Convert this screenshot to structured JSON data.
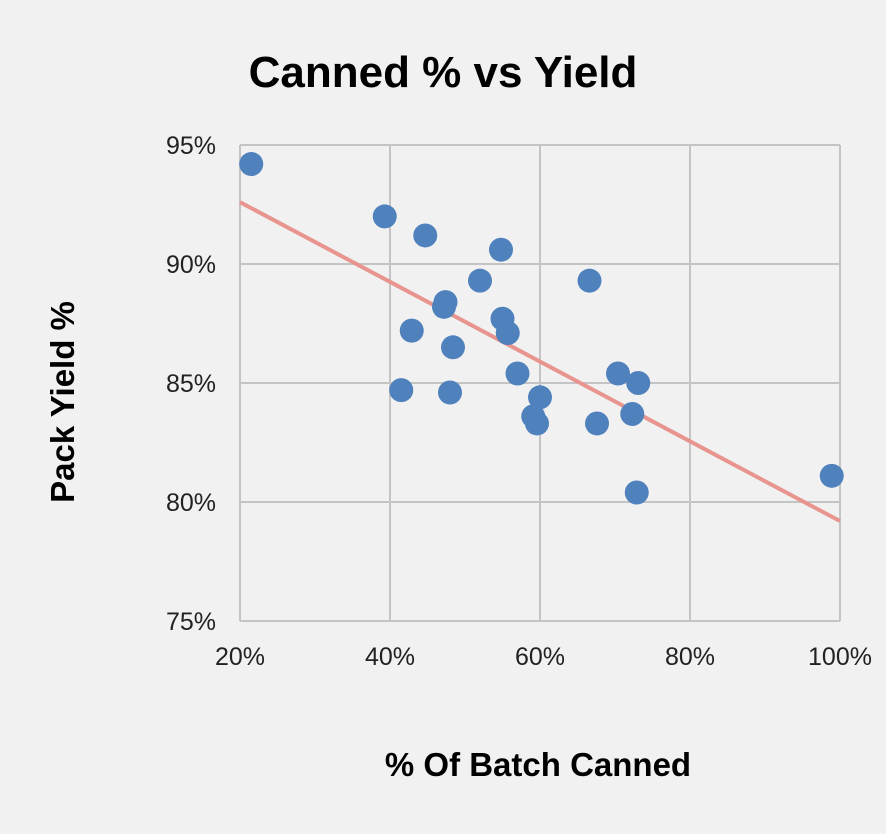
{
  "chart_data": {
    "type": "scatter",
    "title": "Canned % vs Yield",
    "xlabel": "% Of Batch Canned",
    "ylabel": "Pack Yield %",
    "xlim": [
      20,
      100
    ],
    "ylim": [
      75,
      95
    ],
    "xticks": [
      20,
      40,
      60,
      80,
      100
    ],
    "xtick_labels": [
      "20%",
      "40%",
      "60%",
      "80%",
      "100%"
    ],
    "yticks": [
      75,
      80,
      85,
      90,
      95
    ],
    "ytick_labels": [
      "75%",
      "80%",
      "85%",
      "90%",
      "95%"
    ],
    "grid": true,
    "legend": "none",
    "colors": {
      "points": "#4f81bd",
      "trendline": "#e8948f",
      "background": "#f1f1f1"
    },
    "series": [
      {
        "values": [
          {
            "x": 21.5,
            "y": 94.2
          },
          {
            "x": 39.3,
            "y": 92.0
          },
          {
            "x": 44.7,
            "y": 91.2
          },
          {
            "x": 54.8,
            "y": 90.6
          },
          {
            "x": 52.0,
            "y": 89.3
          },
          {
            "x": 66.6,
            "y": 89.3
          },
          {
            "x": 47.4,
            "y": 88.4
          },
          {
            "x": 47.2,
            "y": 88.2
          },
          {
            "x": 55.0,
            "y": 87.7
          },
          {
            "x": 55.7,
            "y": 87.1
          },
          {
            "x": 42.9,
            "y": 87.2
          },
          {
            "x": 48.4,
            "y": 86.5
          },
          {
            "x": 57.0,
            "y": 85.4
          },
          {
            "x": 70.4,
            "y": 85.4
          },
          {
            "x": 73.1,
            "y": 85.0
          },
          {
            "x": 41.5,
            "y": 84.7
          },
          {
            "x": 48.0,
            "y": 84.6
          },
          {
            "x": 60.0,
            "y": 84.4
          },
          {
            "x": 59.1,
            "y": 83.6
          },
          {
            "x": 59.6,
            "y": 83.3
          },
          {
            "x": 67.6,
            "y": 83.3
          },
          {
            "x": 72.3,
            "y": 83.7
          },
          {
            "x": 72.9,
            "y": 80.4
          },
          {
            "x": 98.9,
            "y": 81.1
          }
        ]
      }
    ],
    "trendline": {
      "type": "linear",
      "x": [
        20,
        100
      ],
      "y": [
        92.6,
        79.2
      ]
    }
  }
}
